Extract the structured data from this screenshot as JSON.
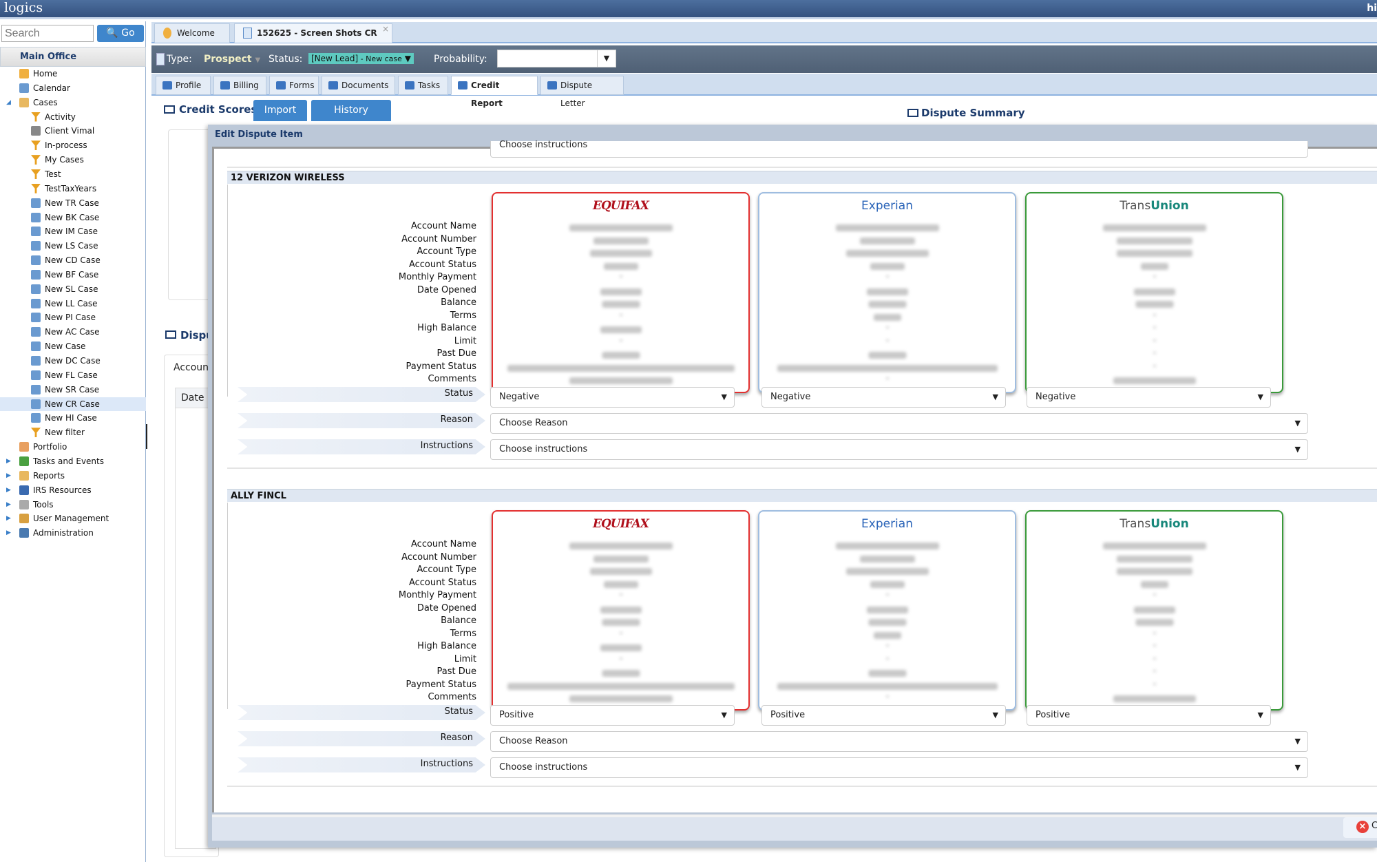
{
  "app": {
    "logo": "logics",
    "user_initial": "hi"
  },
  "sidebar": {
    "search_placeholder": "Search",
    "go_label": "Go",
    "root": "Main Office",
    "items": [
      {
        "label": "Home",
        "icon": "home-icon",
        "level": 1
      },
      {
        "label": "Calendar",
        "icon": "calendar-icon",
        "level": 1
      },
      {
        "label": "Cases",
        "icon": "cases-folder-icon",
        "level": 1,
        "expanded": true
      },
      {
        "label": "Activity",
        "icon": "filter-icon",
        "level": 2
      },
      {
        "label": "Client Vimal",
        "icon": "user-icon",
        "level": 2
      },
      {
        "label": "In-process",
        "icon": "filter-icon",
        "level": 2
      },
      {
        "label": "My Cases",
        "icon": "filter-icon",
        "level": 2
      },
      {
        "label": "Test",
        "icon": "filter-icon",
        "level": 2
      },
      {
        "label": "TestTaxYears",
        "icon": "filter-icon",
        "level": 2
      },
      {
        "label": "New TR Case",
        "icon": "new-case-icon",
        "level": 2
      },
      {
        "label": "New BK Case",
        "icon": "new-case-icon",
        "level": 2
      },
      {
        "label": "New IM Case",
        "icon": "new-case-icon",
        "level": 2
      },
      {
        "label": "New LS Case",
        "icon": "new-case-icon",
        "level": 2
      },
      {
        "label": "New CD Case",
        "icon": "new-case-icon",
        "level": 2
      },
      {
        "label": "New BF Case",
        "icon": "new-case-icon",
        "level": 2
      },
      {
        "label": "New SL Case",
        "icon": "new-case-icon",
        "level": 2
      },
      {
        "label": "New LL Case",
        "icon": "new-case-icon",
        "level": 2
      },
      {
        "label": "New PI Case",
        "icon": "new-case-icon",
        "level": 2
      },
      {
        "label": "New AC Case",
        "icon": "new-case-icon",
        "level": 2
      },
      {
        "label": "New Case",
        "icon": "new-case-icon",
        "level": 2
      },
      {
        "label": "New DC Case",
        "icon": "new-case-icon",
        "level": 2
      },
      {
        "label": "New FL Case",
        "icon": "new-case-icon",
        "level": 2
      },
      {
        "label": "New SR Case",
        "icon": "new-case-icon",
        "level": 2
      },
      {
        "label": "New CR Case",
        "icon": "new-case-icon",
        "level": 2,
        "selected": true
      },
      {
        "label": "New HI Case",
        "icon": "new-case-icon",
        "level": 2
      },
      {
        "label": "New filter",
        "icon": "filter-icon",
        "level": 2
      },
      {
        "label": "Portfolio",
        "icon": "portfolio-icon",
        "level": 1
      },
      {
        "label": "Tasks and Events",
        "icon": "tasks-icon",
        "level": 1,
        "collapsed": true
      },
      {
        "label": "Reports",
        "icon": "reports-icon",
        "level": 1,
        "collapsed": true
      },
      {
        "label": "IRS Resources",
        "icon": "info-icon",
        "level": 1,
        "collapsed": true
      },
      {
        "label": "Tools",
        "icon": "gear-icon",
        "level": 1,
        "collapsed": true
      },
      {
        "label": "User Management",
        "icon": "lock-icon",
        "level": 1,
        "collapsed": true
      },
      {
        "label": "Administration",
        "icon": "admin-icon",
        "level": 1,
        "collapsed": true
      }
    ]
  },
  "tabs": [
    {
      "label": "Welcome"
    },
    {
      "label": "152625 - Screen Shots CR",
      "closable": true
    }
  ],
  "casebar": {
    "type_label": "Type:",
    "type_value": "Prospect",
    "status_label": "Status:",
    "status_value": "[New Lead]",
    "status_sub": " - New case",
    "probability_label": "Probability:",
    "probability_value": ""
  },
  "subtabs": [
    {
      "label": "Profile"
    },
    {
      "label": "Billing"
    },
    {
      "label": "Forms"
    },
    {
      "label": "Documents"
    },
    {
      "label": "Tasks"
    },
    {
      "label": "Credit Report",
      "active": true
    },
    {
      "label": "Dispute Letter"
    }
  ],
  "credit": {
    "title": "Credit Scores",
    "import": "Import",
    "history": "History",
    "dispute_summary": "Dispute Summary",
    "dispute_partial": "Dispu",
    "account_partial": "Account",
    "date_partial": "Date"
  },
  "modal": {
    "title": "Edit Dispute Item",
    "prev_instructions": "Choose instructions",
    "close_partial": "C"
  },
  "field_labels": [
    "Account Name",
    "Account Number",
    "Account Type",
    "Account Status",
    "Monthly Payment",
    "Date Opened",
    "Balance",
    "Terms",
    "High Balance",
    "Limit",
    "Past Due",
    "Payment Status",
    "Comments"
  ],
  "bureaus": {
    "equifax": "EQUIFAX",
    "experian": "Experian",
    "transunion_a": "Trans",
    "transunion_b": "Union"
  },
  "row_labels": {
    "status": "Status",
    "reason": "Reason",
    "instructions": "Instructions"
  },
  "sections": [
    {
      "name": "12 VERIZON WIRELESS",
      "statuses": [
        "Negative",
        "Negative",
        "Negative"
      ],
      "reason": "Choose Reason",
      "instructions": "Choose instructions"
    },
    {
      "name": "ALLY FINCL",
      "statuses": [
        "Positive",
        "Positive",
        "Positive"
      ],
      "reason": "Choose Reason",
      "instructions": "Choose instructions"
    }
  ],
  "colors": {
    "equifax_border": "#e33030",
    "experian_border": "#9fbde0",
    "transunion_border": "#3a9a3a",
    "accent": "#3f86cc"
  }
}
